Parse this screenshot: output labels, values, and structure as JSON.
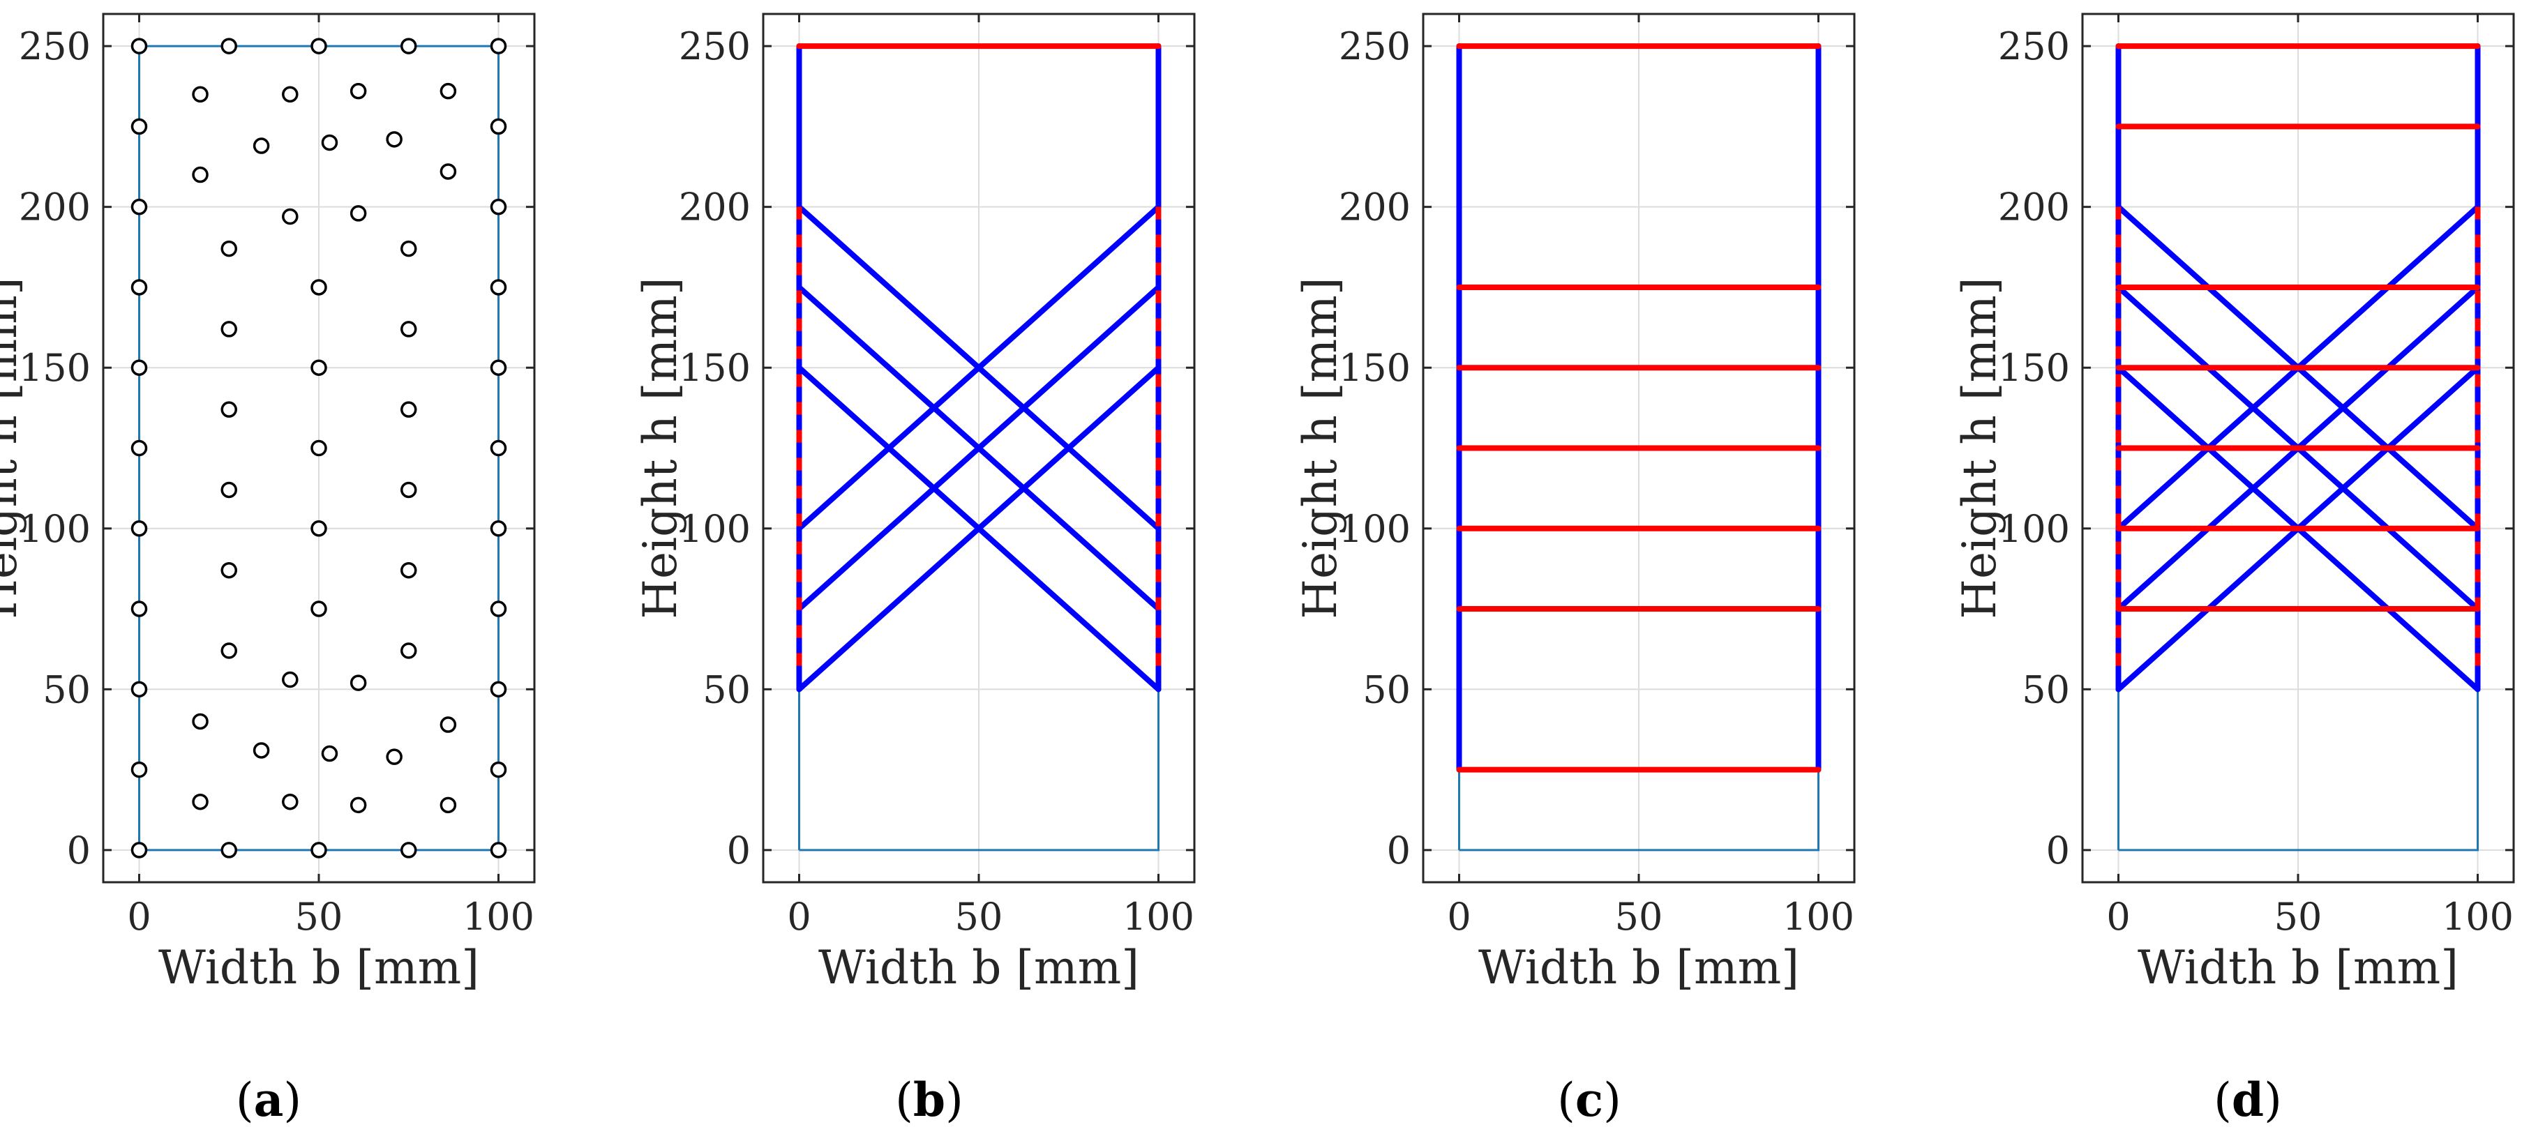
{
  "chart_data": [
    {
      "type": "scatter",
      "panel_label": "a",
      "xlabel": "Width b [mm]",
      "ylabel": "Height h [mm]",
      "xlim": [
        -10,
        110
      ],
      "ylim": [
        -10,
        260
      ],
      "xticks": [
        0,
        50,
        100
      ],
      "yticks": [
        0,
        50,
        100,
        150,
        200,
        250
      ],
      "grid": true,
      "outline": [
        [
          0,
          0
        ],
        [
          100,
          0
        ],
        [
          100,
          250
        ],
        [
          0,
          250
        ],
        [
          0,
          0
        ]
      ],
      "points": [
        [
          0,
          0
        ],
        [
          25,
          0
        ],
        [
          50,
          0
        ],
        [
          75,
          0
        ],
        [
          100,
          0
        ],
        [
          0,
          25
        ],
        [
          0,
          50
        ],
        [
          0,
          75
        ],
        [
          0,
          100
        ],
        [
          0,
          125
        ],
        [
          0,
          150
        ],
        [
          0,
          175
        ],
        [
          0,
          200
        ],
        [
          0,
          225
        ],
        [
          0,
          250
        ],
        [
          100,
          25
        ],
        [
          100,
          50
        ],
        [
          100,
          75
        ],
        [
          100,
          100
        ],
        [
          100,
          125
        ],
        [
          100,
          150
        ],
        [
          100,
          175
        ],
        [
          100,
          200
        ],
        [
          100,
          225
        ],
        [
          100,
          250
        ],
        [
          25,
          250
        ],
        [
          50,
          250
        ],
        [
          75,
          250
        ],
        [
          17,
          235
        ],
        [
          42,
          235
        ],
        [
          61,
          236
        ],
        [
          86,
          236
        ],
        [
          34,
          219
        ],
        [
          53,
          220
        ],
        [
          71,
          221
        ],
        [
          17,
          210
        ],
        [
          86,
          211
        ],
        [
          42,
          197
        ],
        [
          61,
          198
        ],
        [
          25,
          187
        ],
        [
          75,
          187
        ],
        [
          50,
          175
        ],
        [
          25,
          162
        ],
        [
          75,
          162
        ],
        [
          50,
          150
        ],
        [
          25,
          137
        ],
        [
          75,
          137
        ],
        [
          50,
          125
        ],
        [
          25,
          112
        ],
        [
          75,
          112
        ],
        [
          50,
          100
        ],
        [
          25,
          87
        ],
        [
          75,
          87
        ],
        [
          50,
          75
        ],
        [
          25,
          62
        ],
        [
          75,
          62
        ],
        [
          42,
          53
        ],
        [
          61,
          52
        ],
        [
          17,
          40
        ],
        [
          86,
          39
        ],
        [
          34,
          31
        ],
        [
          53,
          30
        ],
        [
          71,
          29
        ],
        [
          17,
          15
        ],
        [
          42,
          15
        ],
        [
          61,
          14
        ],
        [
          86,
          14
        ]
      ]
    },
    {
      "type": "line",
      "panel_label": "b",
      "xlabel": "Width b [mm]",
      "ylabel": "Height h [mm]",
      "xlim": [
        -10,
        110
      ],
      "ylim": [
        -10,
        260
      ],
      "xticks": [
        0,
        50,
        100
      ],
      "yticks": [
        0,
        50,
        100,
        150,
        200,
        250
      ],
      "grid": true,
      "outline": [
        [
          0,
          0
        ],
        [
          100,
          0
        ],
        [
          100,
          250
        ],
        [
          0,
          250
        ],
        [
          0,
          0
        ]
      ],
      "ties": [
        {
          "from": [
            0,
            250
          ],
          "to": [
            100,
            250
          ],
          "color": "#ff0000"
        }
      ],
      "struts": [
        {
          "from": [
            0,
            250
          ],
          "to": [
            0,
            50
          ]
        },
        {
          "from": [
            100,
            250
          ],
          "to": [
            100,
            50
          ]
        },
        {
          "from": [
            0,
            200
          ],
          "to": [
            100,
            100
          ]
        },
        {
          "from": [
            0,
            175
          ],
          "to": [
            100,
            75
          ]
        },
        {
          "from": [
            0,
            150
          ],
          "to": [
            100,
            50
          ]
        },
        {
          "from": [
            0,
            100
          ],
          "to": [
            100,
            200
          ]
        },
        {
          "from": [
            0,
            75
          ],
          "to": [
            100,
            175
          ]
        },
        {
          "from": [
            0,
            50
          ],
          "to": [
            100,
            150
          ]
        }
      ],
      "dashed_ties": [
        {
          "from": [
            0,
            200
          ],
          "to": [
            0,
            55
          ]
        },
        {
          "from": [
            100,
            200
          ],
          "to": [
            100,
            55
          ]
        }
      ]
    },
    {
      "type": "line",
      "panel_label": "c",
      "xlabel": "Width b [mm]",
      "ylabel": "Height h [mm]",
      "xlim": [
        -10,
        110
      ],
      "ylim": [
        -10,
        260
      ],
      "xticks": [
        0,
        50,
        100
      ],
      "yticks": [
        0,
        50,
        100,
        150,
        200,
        250
      ],
      "grid": true,
      "outline": [
        [
          0,
          0
        ],
        [
          100,
          0
        ],
        [
          100,
          250
        ],
        [
          0,
          250
        ],
        [
          0,
          0
        ]
      ],
      "ties": [
        {
          "from": [
            0,
            250
          ],
          "to": [
            100,
            250
          ],
          "color": "#ff0000"
        },
        {
          "from": [
            0,
            175
          ],
          "to": [
            100,
            175
          ],
          "color": "#ff0000"
        },
        {
          "from": [
            0,
            150
          ],
          "to": [
            100,
            150
          ],
          "color": "#ff0000"
        },
        {
          "from": [
            0,
            125
          ],
          "to": [
            100,
            125
          ],
          "color": "#ff0000"
        },
        {
          "from": [
            0,
            100
          ],
          "to": [
            100,
            100
          ],
          "color": "#ff0000"
        },
        {
          "from": [
            0,
            75
          ],
          "to": [
            100,
            75
          ],
          "color": "#ff0000"
        },
        {
          "from": [
            0,
            25
          ],
          "to": [
            100,
            25
          ],
          "color": "#ff0000"
        }
      ],
      "struts": [
        {
          "from": [
            0,
            250
          ],
          "to": [
            0,
            25
          ]
        },
        {
          "from": [
            100,
            250
          ],
          "to": [
            100,
            25
          ]
        }
      ],
      "dashed_ties": []
    },
    {
      "type": "line",
      "panel_label": "d",
      "xlabel": "Width b [mm]",
      "ylabel": "Height h [mm]",
      "xlim": [
        -10,
        110
      ],
      "ylim": [
        -10,
        260
      ],
      "xticks": [
        0,
        50,
        100
      ],
      "yticks": [
        0,
        50,
        100,
        150,
        200,
        250
      ],
      "grid": true,
      "outline": [
        [
          0,
          0
        ],
        [
          100,
          0
        ],
        [
          100,
          250
        ],
        [
          0,
          250
        ],
        [
          0,
          0
        ]
      ],
      "ties": [
        {
          "from": [
            0,
            250
          ],
          "to": [
            100,
            250
          ],
          "color": "#ff0000"
        },
        {
          "from": [
            0,
            225
          ],
          "to": [
            100,
            225
          ],
          "color": "#ff0000"
        },
        {
          "from": [
            0,
            175
          ],
          "to": [
            100,
            175
          ],
          "color": "#ff0000"
        },
        {
          "from": [
            0,
            150
          ],
          "to": [
            100,
            150
          ],
          "color": "#ff0000"
        },
        {
          "from": [
            0,
            125
          ],
          "to": [
            100,
            125
          ],
          "color": "#ff0000"
        },
        {
          "from": [
            0,
            100
          ],
          "to": [
            100,
            100
          ],
          "color": "#ff0000"
        },
        {
          "from": [
            0,
            75
          ],
          "to": [
            100,
            75
          ],
          "color": "#ff0000"
        }
      ],
      "struts": [
        {
          "from": [
            0,
            250
          ],
          "to": [
            0,
            50
          ]
        },
        {
          "from": [
            100,
            250
          ],
          "to": [
            100,
            50
          ]
        },
        {
          "from": [
            0,
            200
          ],
          "to": [
            100,
            100
          ]
        },
        {
          "from": [
            0,
            175
          ],
          "to": [
            100,
            75
          ]
        },
        {
          "from": [
            0,
            150
          ],
          "to": [
            100,
            50
          ]
        },
        {
          "from": [
            0,
            100
          ],
          "to": [
            100,
            200
          ]
        },
        {
          "from": [
            0,
            75
          ],
          "to": [
            100,
            175
          ]
        },
        {
          "from": [
            0,
            50
          ],
          "to": [
            100,
            150
          ]
        }
      ],
      "dashed_ties": [
        {
          "from": [
            0,
            200
          ],
          "to": [
            0,
            55
          ]
        },
        {
          "from": [
            100,
            200
          ],
          "to": [
            100,
            55
          ]
        }
      ]
    }
  ],
  "colors": {
    "outline": "#1f77b4",
    "strut": "#0000ff",
    "tie": "#ff0000",
    "grid": "#dcdcdc",
    "axes": "#262626",
    "marker": "#000000"
  }
}
